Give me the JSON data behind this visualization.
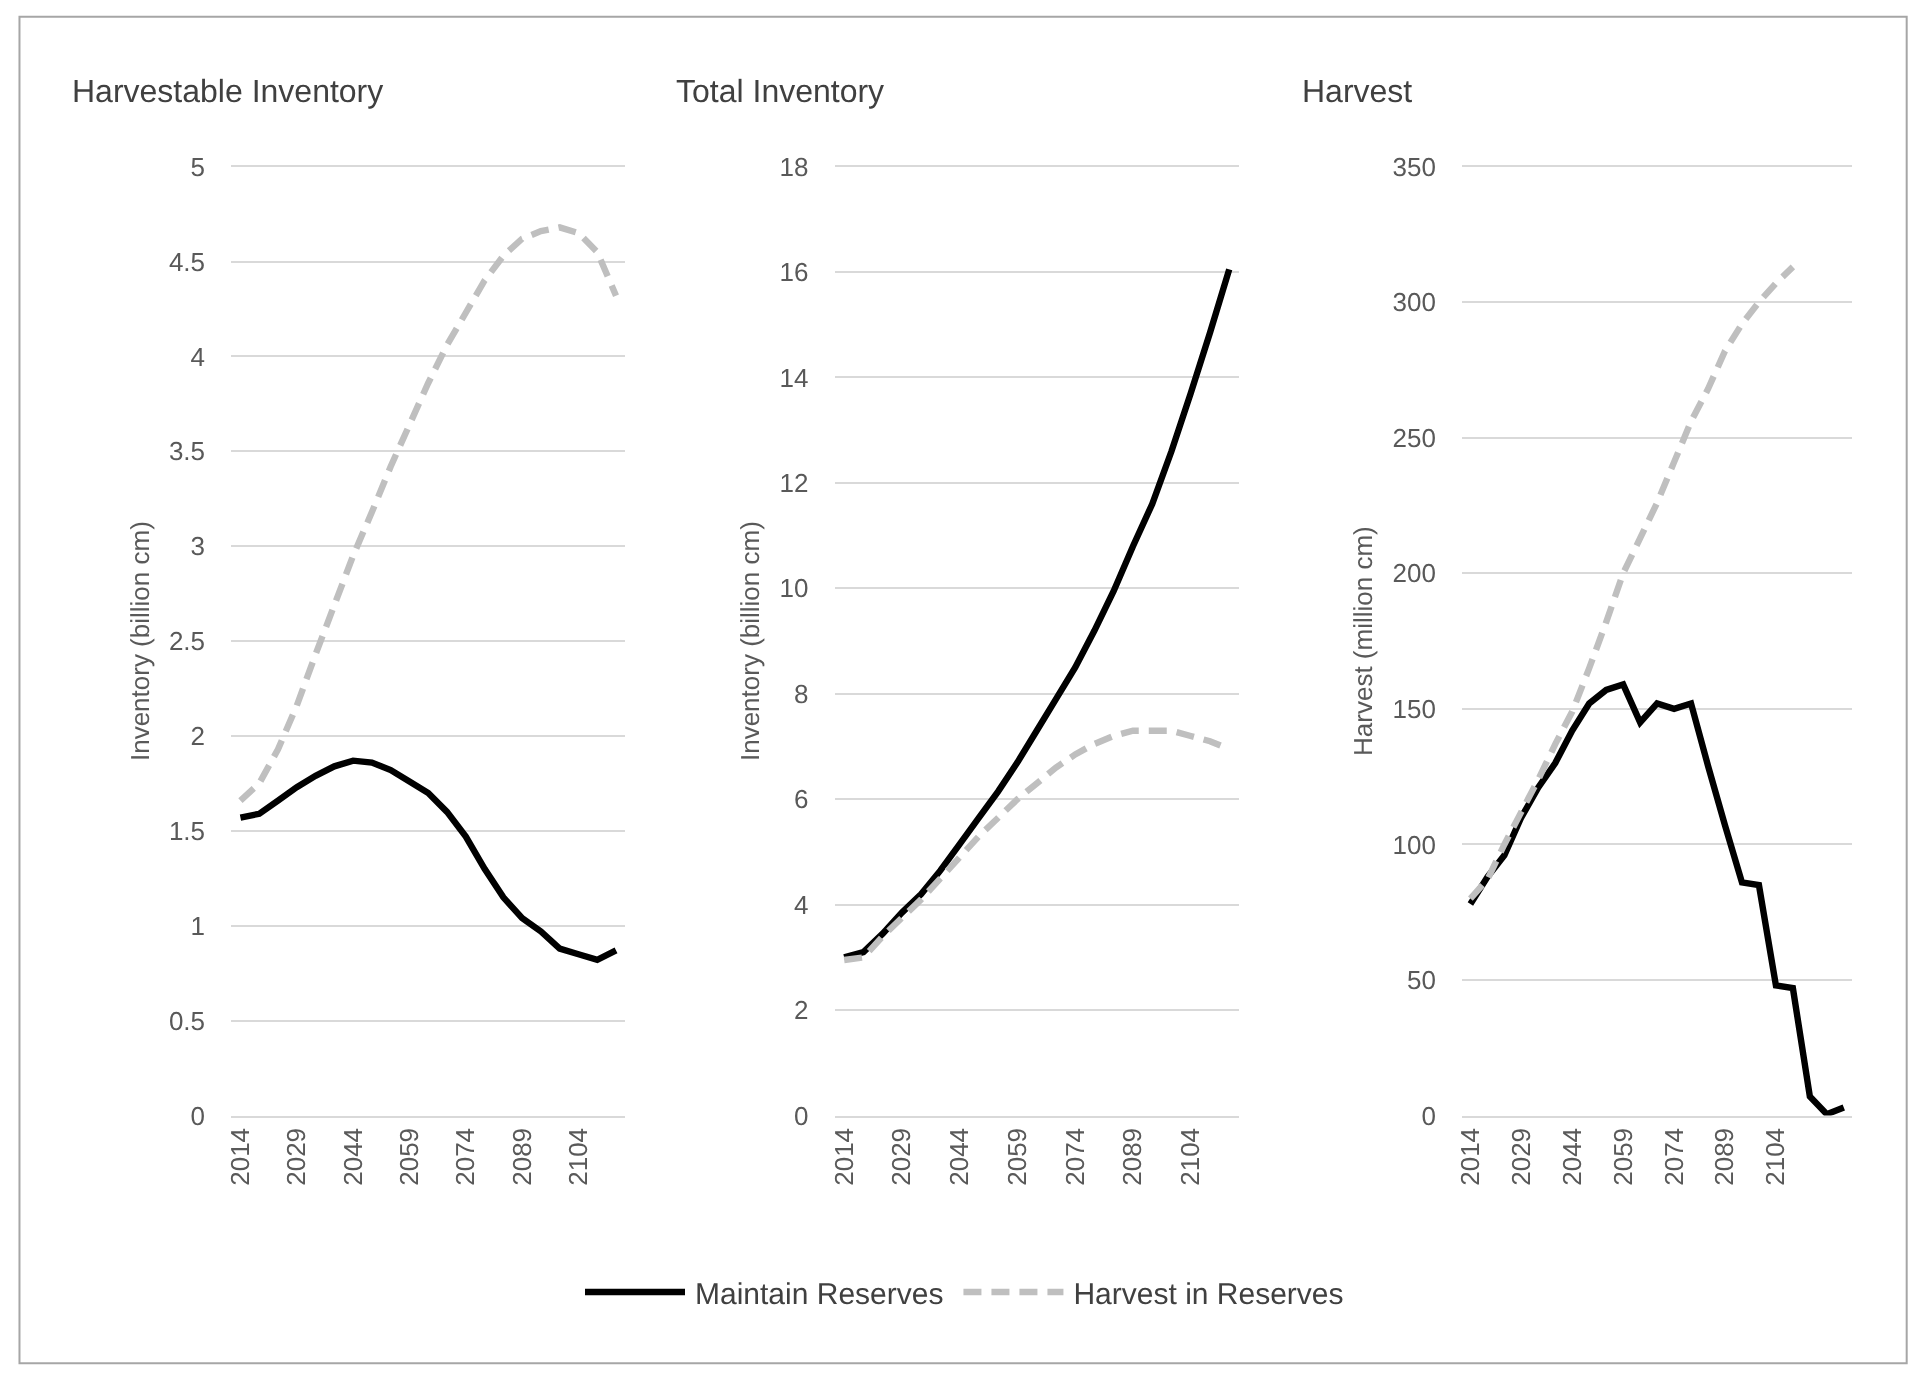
{
  "chart_data": [
    {
      "type": "line",
      "title": "Harvestable Inventory",
      "ylabel": "Inventory (billion cm)",
      "x": [
        2014,
        2019,
        2024,
        2029,
        2034,
        2039,
        2044,
        2049,
        2054,
        2059,
        2064,
        2069,
        2074,
        2079,
        2084,
        2089,
        2094,
        2099,
        2104,
        2109,
        2114
      ],
      "xlim": [
        2011.5,
        2116.5
      ],
      "xticks": [
        2014,
        2029,
        2044,
        2059,
        2074,
        2089,
        2104
      ],
      "ylim": [
        0,
        5
      ],
      "yticks": [
        0,
        0.5,
        1,
        1.5,
        2,
        2.5,
        3,
        3.5,
        4,
        4.5,
        5
      ],
      "grid": "y",
      "legend": "bottom",
      "series": [
        {
          "name": "Maintain Reserves",
          "color": "#000000",
          "line_style": "solid",
          "values": [
            1.57,
            1.59,
            1.66,
            1.73,
            1.79,
            1.84,
            1.87,
            1.86,
            1.82,
            1.76,
            1.7,
            1.6,
            1.47,
            1.3,
            1.15,
            1.04,
            0.97,
            0.88,
            0.85,
            0.82,
            0.87
          ]
        },
        {
          "name": "Harvest in Reserves",
          "color": "#bfbfbf",
          "line_style": "dashed",
          "values": [
            1.66,
            1.75,
            1.93,
            2.16,
            2.43,
            2.69,
            2.95,
            3.18,
            3.42,
            3.64,
            3.86,
            4.06,
            4.23,
            4.4,
            4.53,
            4.62,
            4.66,
            4.68,
            4.65,
            4.55,
            4.32
          ]
        }
      ]
    },
    {
      "type": "line",
      "title": "Total Inventory",
      "ylabel": "Inventory (billion cm)",
      "x": [
        2014,
        2019,
        2024,
        2029,
        2034,
        2039,
        2044,
        2049,
        2054,
        2059,
        2064,
        2069,
        2074,
        2079,
        2084,
        2089,
        2094,
        2099,
        2104,
        2109,
        2114
      ],
      "xlim": [
        2011.5,
        2116.5
      ],
      "xticks": [
        2014,
        2029,
        2044,
        2059,
        2074,
        2089,
        2104
      ],
      "ylim": [
        0,
        18
      ],
      "yticks": [
        0,
        2,
        4,
        6,
        8,
        10,
        12,
        14,
        16,
        18
      ],
      "grid": "y",
      "series": [
        {
          "color": "#000000",
          "line_style": "solid",
          "values": [
            3.0,
            3.1,
            3.45,
            3.85,
            4.2,
            4.65,
            5.15,
            5.65,
            6.15,
            6.7,
            7.3,
            7.9,
            8.5,
            9.2,
            9.95,
            10.8,
            11.6,
            12.6,
            13.7,
            14.85,
            16.05
          ]
        },
        {
          "color": "#bfbfbf",
          "line_style": "dashed",
          "values": [
            2.95,
            3.0,
            3.4,
            3.75,
            4.1,
            4.5,
            4.9,
            5.3,
            5.65,
            6.0,
            6.3,
            6.6,
            6.85,
            7.05,
            7.2,
            7.3,
            7.3,
            7.3,
            7.2,
            7.1,
            6.95
          ]
        }
      ]
    },
    {
      "type": "line",
      "title": "Harvest",
      "ylabel": "Harvest (million cm)",
      "x": [
        2014,
        2019,
        2024,
        2029,
        2034,
        2039,
        2044,
        2049,
        2054,
        2059,
        2064,
        2069,
        2074,
        2079,
        2084,
        2089,
        2094,
        2099,
        2104,
        2109,
        2114,
        2119,
        2124
      ],
      "xlim": [
        2011.5,
        2126.5
      ],
      "xticks": [
        2014,
        2029,
        2044,
        2059,
        2074,
        2089,
        2104
      ],
      "ylim": [
        0,
        350
      ],
      "yticks": [
        0,
        50,
        100,
        150,
        200,
        250,
        300,
        350
      ],
      "grid": "y",
      "series": [
        {
          "color": "#000000",
          "line_style": "solid",
          "values": [
            78,
            88,
            96,
            110,
            121,
            130,
            142,
            152,
            157,
            159,
            145,
            152,
            150,
            152,
            129,
            107,
            86,
            85,
            48,
            47,
            7,
            0.5,
            3
          ]
        },
        {
          "color": "#bfbfbf",
          "line_style": "dashed",
          "values": [
            80,
            87,
            100,
            112,
            124,
            137,
            149,
            165,
            182,
            200,
            213,
            226,
            241,
            256,
            268,
            282,
            292,
            300,
            307,
            313,
            null,
            null,
            null
          ]
        }
      ]
    }
  ]
}
